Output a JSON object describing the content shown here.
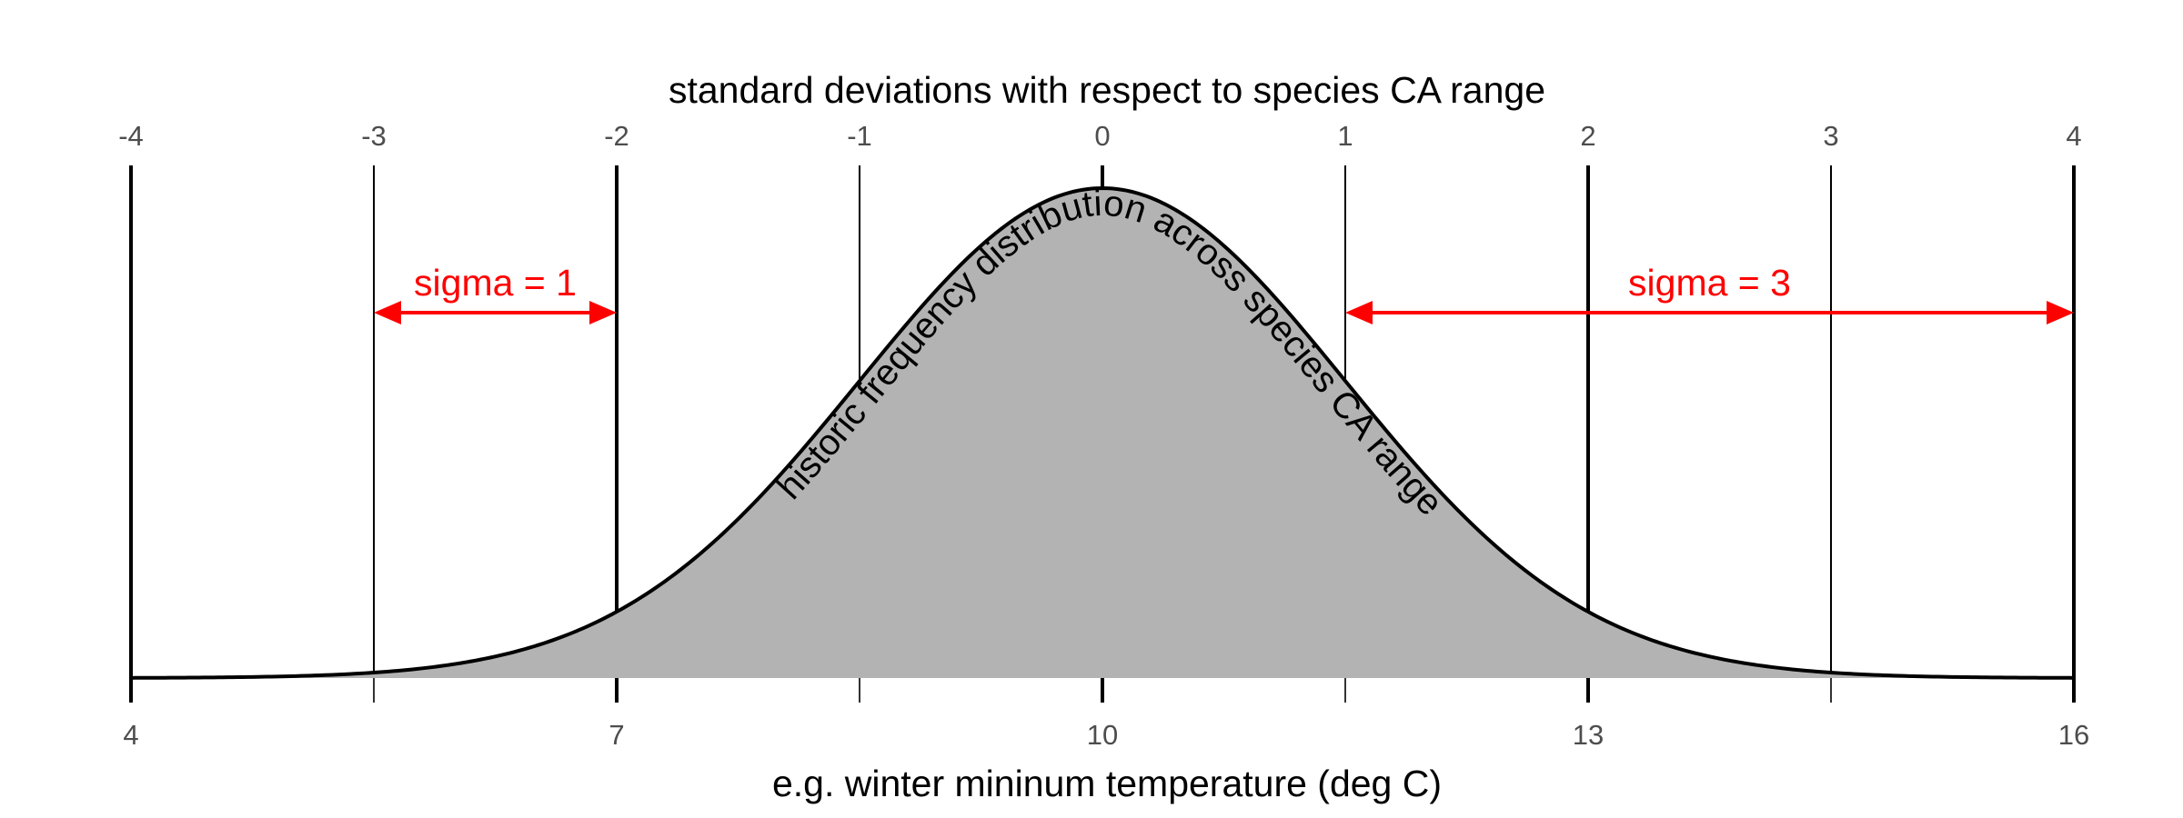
{
  "chart_data": {
    "type": "area",
    "title": "standard deviations with respect to species CA range",
    "xlabel": "e.g. winter mininum temperature (deg C)",
    "top_axis": {
      "ticks": [
        -4,
        -3,
        -2,
        -1,
        0,
        1,
        2,
        3,
        4
      ],
      "tick_labels": [
        "-4",
        "-3",
        "-2",
        "-1",
        "0",
        "1",
        "2",
        "3",
        "4"
      ],
      "major_ticks": [
        -4,
        -2,
        0,
        2,
        4
      ]
    },
    "bottom_axis": {
      "range": [
        4,
        16
      ],
      "ticks": [
        4,
        5.5,
        7,
        8.5,
        10,
        11.5,
        13,
        14.5,
        16
      ],
      "tick_labels": [
        "4",
        "7",
        "10",
        "13",
        "16"
      ],
      "labeled_ticks": [
        4,
        7,
        10,
        13,
        16
      ]
    },
    "distribution": {
      "type": "normal",
      "mean": 10,
      "sd": 1.5,
      "label": "historic frequency distribution across species CA range",
      "fill_color": "#b3b3b3",
      "line_color": "#000000"
    },
    "annotations": [
      {
        "label": "sigma = 1",
        "from_sd": -3,
        "to_sd": -2,
        "color": "#ff0000"
      },
      {
        "label": "sigma = 3",
        "from_sd": 1,
        "to_sd": 4,
        "color": "#ff0000"
      }
    ]
  }
}
